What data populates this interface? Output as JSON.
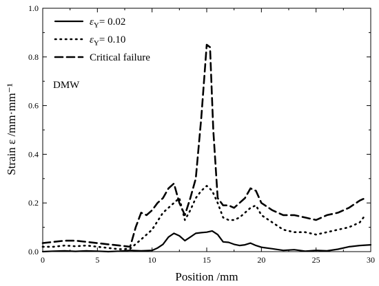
{
  "chart_data": {
    "type": "line",
    "xlabel": "Position  /mm",
    "ylabel": "Strain  ε /mm·mm⁻¹",
    "xlim": [
      0,
      30
    ],
    "ylim": [
      0,
      1.0
    ],
    "x_ticks": [
      "0",
      "5",
      "10",
      "15",
      "20",
      "25",
      "30"
    ],
    "y_ticks": [
      "0.0",
      "0.2",
      "0.4",
      "0.6",
      "0.8",
      "1.0"
    ],
    "annotation": "DMW",
    "grid": false,
    "legend_position": "top-left",
    "series": [
      {
        "name": "εY= 0.02",
        "style": "solid",
        "x": [
          0,
          1,
          2,
          3,
          4,
          5,
          6,
          7,
          8,
          9,
          10,
          10.5,
          11,
          11.5,
          12,
          12.5,
          13,
          13.5,
          14,
          14.5,
          15,
          15.5,
          16,
          16.5,
          17,
          17.5,
          18,
          18.5,
          19,
          19.5,
          20,
          21,
          22,
          23,
          24,
          25,
          26,
          27,
          28,
          29,
          30
        ],
        "values": [
          0.0,
          0.002,
          0.003,
          0.001,
          0.003,
          0.002,
          0.0,
          0.002,
          0.005,
          0.003,
          0.005,
          0.015,
          0.03,
          0.06,
          0.075,
          0.065,
          0.045,
          0.06,
          0.075,
          0.078,
          0.08,
          0.085,
          0.07,
          0.04,
          0.038,
          0.03,
          0.025,
          0.028,
          0.035,
          0.025,
          0.018,
          0.012,
          0.005,
          0.008,
          0.002,
          0.005,
          0.003,
          0.01,
          0.02,
          0.025,
          0.028
        ]
      },
      {
        "name": "εY= 0.10",
        "style": "dotted",
        "x": [
          0,
          1,
          2,
          3,
          4,
          5,
          6,
          7,
          8,
          9,
          10,
          11,
          12,
          12.5,
          13,
          13.5,
          14,
          14.5,
          15,
          15.5,
          16,
          16.5,
          17,
          17.5,
          18,
          18.5,
          19,
          19.5,
          20,
          21,
          22,
          23,
          24,
          25,
          26,
          27,
          28,
          29,
          29.5
        ],
        "values": [
          0.02,
          0.02,
          0.025,
          0.022,
          0.025,
          0.02,
          0.015,
          0.01,
          0.012,
          0.05,
          0.09,
          0.16,
          0.2,
          0.22,
          0.13,
          0.17,
          0.22,
          0.25,
          0.27,
          0.25,
          0.2,
          0.14,
          0.13,
          0.13,
          0.14,
          0.16,
          0.18,
          0.19,
          0.15,
          0.12,
          0.09,
          0.08,
          0.08,
          0.07,
          0.08,
          0.09,
          0.1,
          0.12,
          0.15
        ]
      },
      {
        "name": "Critical failure",
        "style": "dashed",
        "x": [
          0,
          1,
          2,
          3,
          4,
          5,
          6,
          7,
          8,
          8.5,
          9,
          9.5,
          10,
          10.5,
          11,
          11.5,
          12,
          12.5,
          13,
          13.5,
          14,
          14.5,
          15,
          15.3,
          15.6,
          16,
          16.5,
          17,
          17.5,
          18,
          18.5,
          19,
          19.5,
          20,
          21,
          22,
          23,
          24,
          25,
          26,
          27,
          28,
          29,
          29.5
        ],
        "values": [
          0.035,
          0.04,
          0.045,
          0.045,
          0.04,
          0.035,
          0.03,
          0.025,
          0.02,
          0.1,
          0.16,
          0.15,
          0.17,
          0.2,
          0.22,
          0.26,
          0.28,
          0.2,
          0.15,
          0.22,
          0.3,
          0.55,
          0.85,
          0.84,
          0.5,
          0.22,
          0.19,
          0.19,
          0.18,
          0.2,
          0.22,
          0.26,
          0.25,
          0.2,
          0.17,
          0.15,
          0.15,
          0.14,
          0.13,
          0.15,
          0.16,
          0.18,
          0.21,
          0.22
        ]
      }
    ]
  },
  "legend": [
    {
      "prefix": "ε",
      "sub": "Y",
      "suffix": "= 0.02",
      "style": "solid"
    },
    {
      "prefix": "ε",
      "sub": "Y",
      "suffix": "= 0.10",
      "style": "dotted"
    },
    {
      "prefix": "",
      "sub": "",
      "suffix": "Critical failure",
      "style": "dashed"
    }
  ]
}
